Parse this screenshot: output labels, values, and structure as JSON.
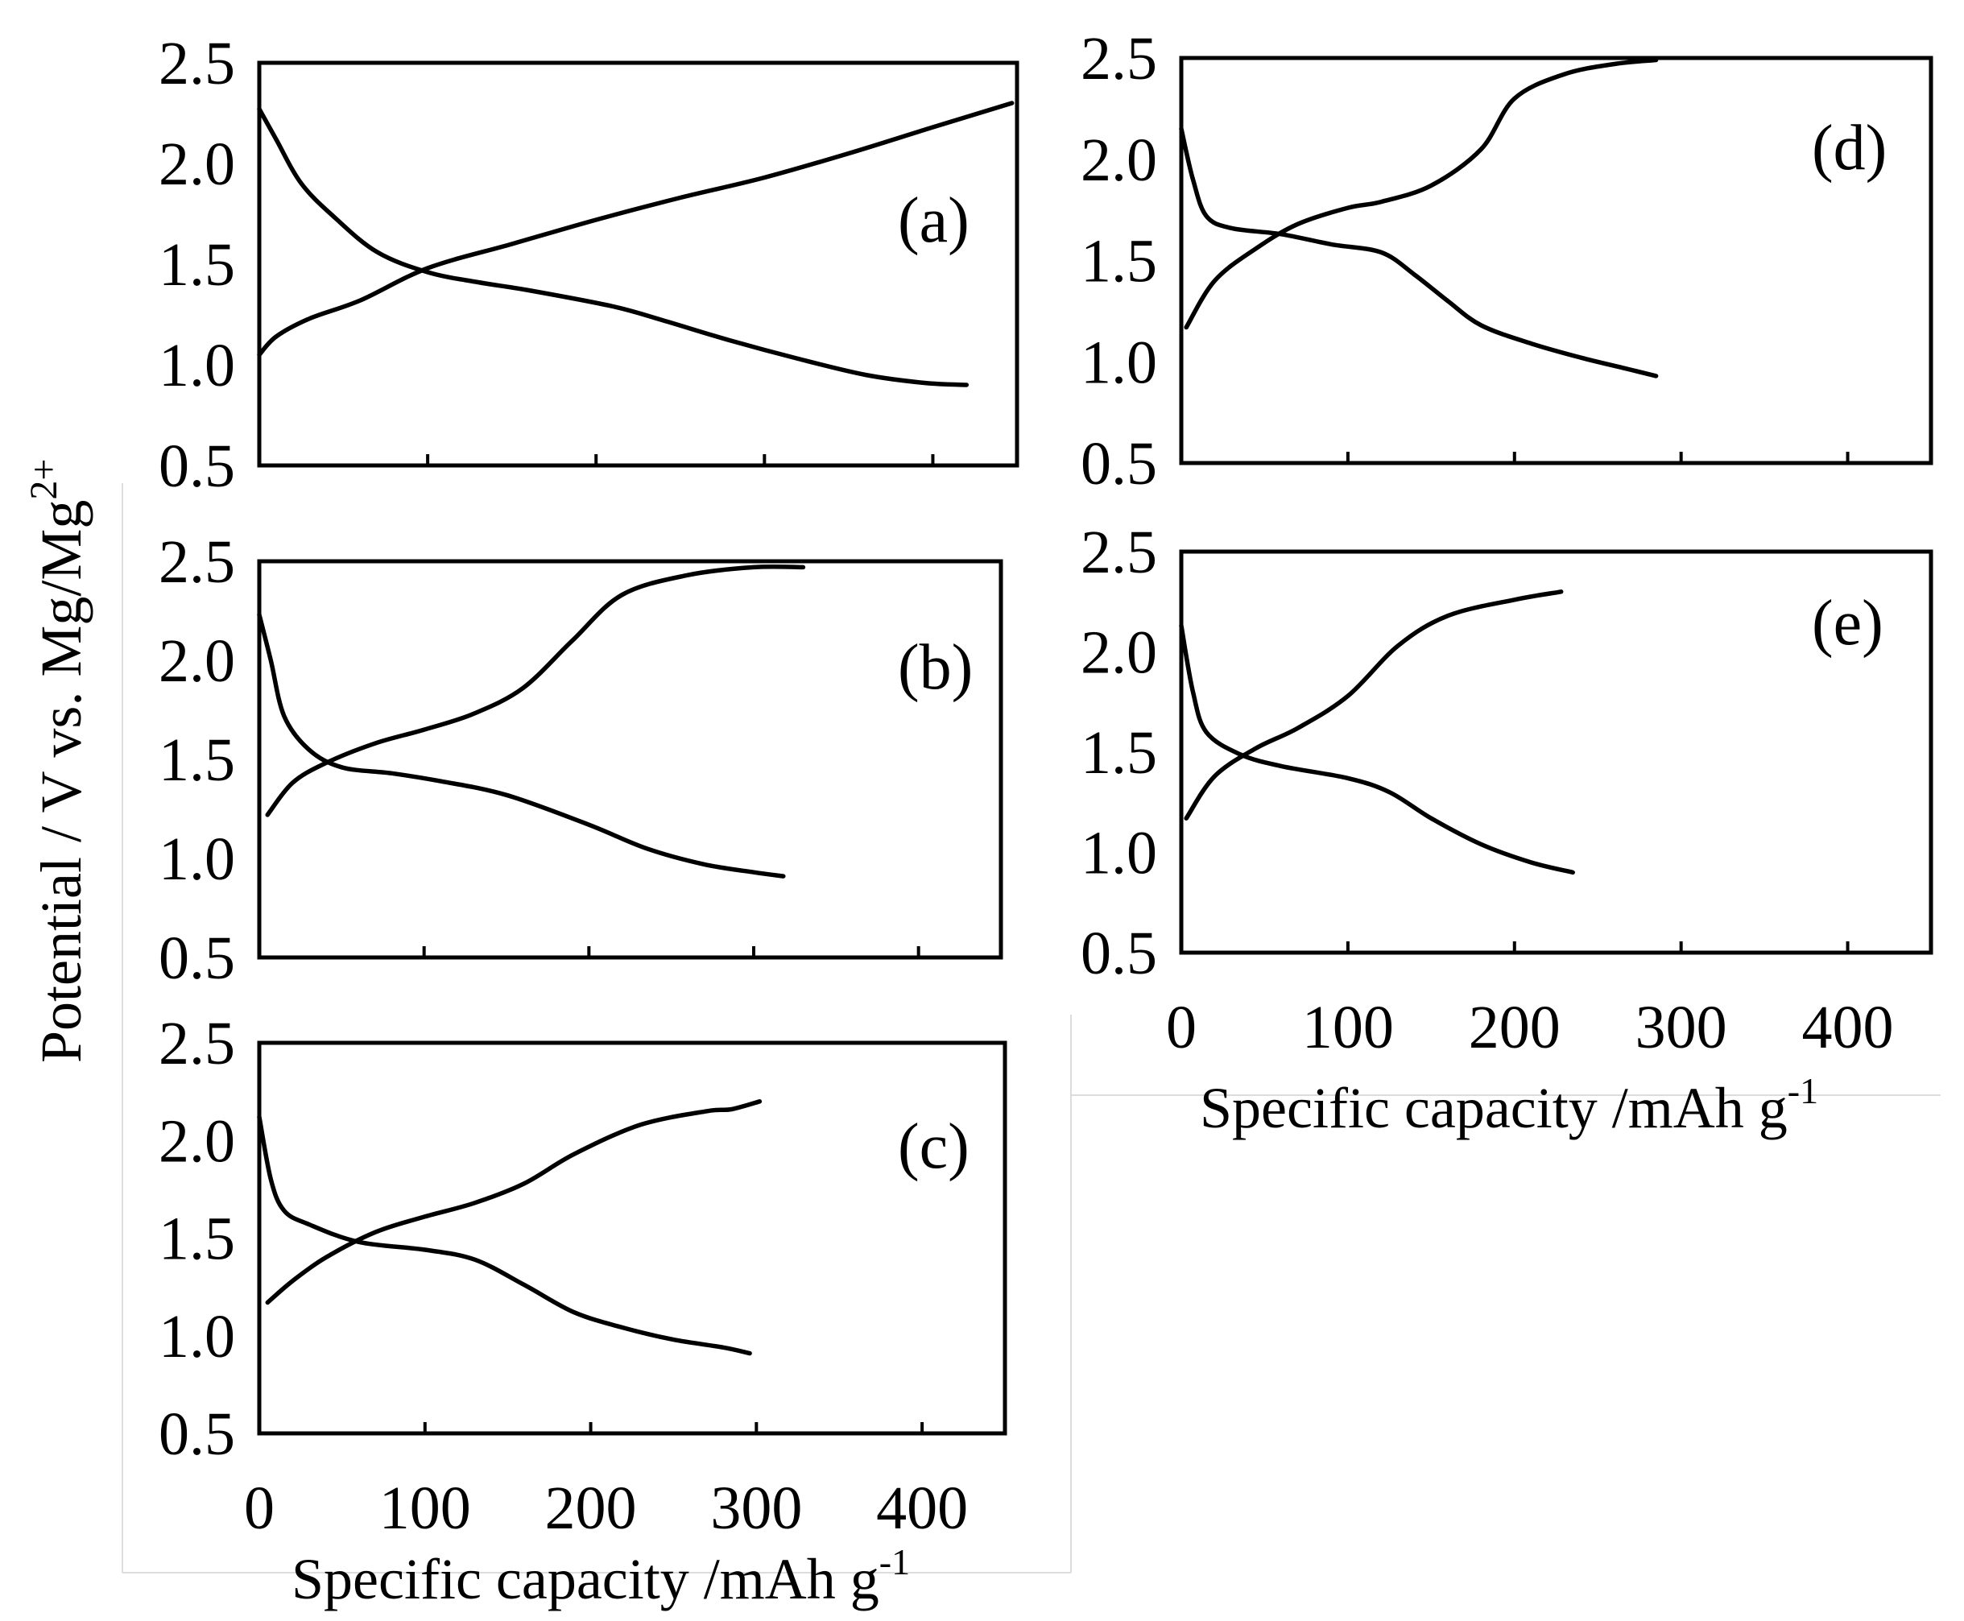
{
  "figure": {
    "y_axis_label": "Potential / V vs. Mg/Mg",
    "y_axis_label_sup": "2+",
    "x_axis_label": "Specific capacity /mAh g",
    "x_axis_label_sup": "-1"
  },
  "chart_data": [
    {
      "type": "line",
      "panel": "(a)",
      "xlim": [
        0,
        450
      ],
      "ylim": [
        0.5,
        2.5
      ],
      "x_ticks": [],
      "y_ticks": [
        "0.5",
        "1.0",
        "1.5",
        "2.0",
        "2.5"
      ],
      "series": [
        {
          "values": [
            [
              0,
              2.27
            ],
            [
              10,
              2.12
            ],
            [
              25,
              1.9
            ],
            [
              45,
              1.73
            ],
            [
              70,
              1.56
            ],
            [
              100,
              1.46
            ],
            [
              130,
              1.41
            ],
            [
              160,
              1.37
            ],
            [
              210,
              1.29
            ],
            [
              240,
              1.22
            ],
            [
              280,
              1.12
            ],
            [
              320,
              1.03
            ],
            [
              360,
              0.95
            ],
            [
              395,
              0.91
            ],
            [
              420,
              0.9
            ]
          ]
        },
        {
          "values": [
            [
              0,
              1.05
            ],
            [
              10,
              1.14
            ],
            [
              30,
              1.23
            ],
            [
              60,
              1.32
            ],
            [
              100,
              1.48
            ],
            [
              150,
              1.6
            ],
            [
              200,
              1.72
            ],
            [
              250,
              1.83
            ],
            [
              300,
              1.93
            ],
            [
              350,
              2.05
            ],
            [
              400,
              2.18
            ],
            [
              447,
              2.3
            ]
          ]
        }
      ]
    },
    {
      "type": "line",
      "panel": "(b)",
      "xlim": [
        0,
        450
      ],
      "ylim": [
        0.5,
        2.5
      ],
      "x_ticks": [],
      "y_ticks": [
        "0.5",
        "1.0",
        "1.5",
        "2.0",
        "2.5"
      ],
      "series": [
        {
          "values": [
            [
              0,
              2.23
            ],
            [
              7,
              2.0
            ],
            [
              15,
              1.72
            ],
            [
              30,
              1.55
            ],
            [
              50,
              1.46
            ],
            [
              80,
              1.43
            ],
            [
              110,
              1.39
            ],
            [
              150,
              1.32
            ],
            [
              200,
              1.17
            ],
            [
              235,
              1.05
            ],
            [
              270,
              0.97
            ],
            [
              300,
              0.93
            ],
            [
              318,
              0.91
            ]
          ]
        },
        {
          "values": [
            [
              5,
              1.22
            ],
            [
              20,
              1.38
            ],
            [
              40,
              1.48
            ],
            [
              70,
              1.58
            ],
            [
              100,
              1.65
            ],
            [
              130,
              1.73
            ],
            [
              160,
              1.86
            ],
            [
              190,
              2.1
            ],
            [
              220,
              2.33
            ],
            [
              260,
              2.43
            ],
            [
              300,
              2.47
            ],
            [
              330,
              2.47
            ]
          ]
        }
      ]
    },
    {
      "type": "line",
      "panel": "(c)",
      "xlim": [
        0,
        450
      ],
      "ylim": [
        0.5,
        2.5
      ],
      "x_ticks": [
        "0",
        "100",
        "200",
        "300",
        "400"
      ],
      "y_ticks": [
        "0.5",
        "1.0",
        "1.5",
        "2.0",
        "2.5"
      ],
      "series": [
        {
          "values": [
            [
              0,
              2.12
            ],
            [
              7,
              1.8
            ],
            [
              15,
              1.64
            ],
            [
              30,
              1.57
            ],
            [
              60,
              1.48
            ],
            [
              100,
              1.44
            ],
            [
              130,
              1.39
            ],
            [
              160,
              1.26
            ],
            [
              190,
              1.12
            ],
            [
              220,
              1.04
            ],
            [
              250,
              0.98
            ],
            [
              280,
              0.94
            ],
            [
              296,
              0.91
            ]
          ]
        },
        {
          "values": [
            [
              5,
              1.17
            ],
            [
              20,
              1.28
            ],
            [
              40,
              1.4
            ],
            [
              70,
              1.53
            ],
            [
              100,
              1.61
            ],
            [
              130,
              1.68
            ],
            [
              160,
              1.78
            ],
            [
              190,
              1.93
            ],
            [
              230,
              2.08
            ],
            [
              270,
              2.15
            ],
            [
              285,
              2.16
            ],
            [
              302,
              2.2
            ]
          ]
        }
      ]
    },
    {
      "type": "line",
      "panel": "(d)",
      "xlim": [
        0,
        450
      ],
      "ylim": [
        0.5,
        2.5
      ],
      "x_ticks": [],
      "y_ticks": [
        "0.5",
        "1.0",
        "1.5",
        "2.0",
        "2.5"
      ],
      "series": [
        {
          "values": [
            [
              0,
              2.15
            ],
            [
              7,
              1.9
            ],
            [
              15,
              1.72
            ],
            [
              30,
              1.66
            ],
            [
              60,
              1.63
            ],
            [
              90,
              1.58
            ],
            [
              120,
              1.54
            ],
            [
              140,
              1.43
            ],
            [
              160,
              1.3
            ],
            [
              180,
              1.18
            ],
            [
              210,
              1.09
            ],
            [
              240,
              1.02
            ],
            [
              265,
              0.97
            ],
            [
              285,
              0.93
            ]
          ]
        },
        {
          "values": [
            [
              3,
              1.17
            ],
            [
              20,
              1.4
            ],
            [
              45,
              1.56
            ],
            [
              70,
              1.68
            ],
            [
              100,
              1.76
            ],
            [
              120,
              1.79
            ],
            [
              150,
              1.87
            ],
            [
              180,
              2.05
            ],
            [
              200,
              2.3
            ],
            [
              230,
              2.42
            ],
            [
              260,
              2.47
            ],
            [
              285,
              2.49
            ]
          ]
        }
      ]
    },
    {
      "type": "line",
      "panel": "(e)",
      "xlim": [
        0,
        450
      ],
      "ylim": [
        0.5,
        2.5
      ],
      "x_ticks": [
        "0",
        "100",
        "200",
        "300",
        "400"
      ],
      "y_ticks": [
        "0.5",
        "1.0",
        "1.5",
        "2.0",
        "2.5"
      ],
      "series": [
        {
          "values": [
            [
              0,
              2.13
            ],
            [
              7,
              1.8
            ],
            [
              15,
              1.6
            ],
            [
              35,
              1.49
            ],
            [
              60,
              1.43
            ],
            [
              100,
              1.37
            ],
            [
              125,
              1.3
            ],
            [
              150,
              1.17
            ],
            [
              180,
              1.04
            ],
            [
              210,
              0.95
            ],
            [
              235,
              0.9
            ]
          ]
        },
        {
          "values": [
            [
              3,
              1.17
            ],
            [
              20,
              1.38
            ],
            [
              45,
              1.52
            ],
            [
              70,
              1.62
            ],
            [
              100,
              1.78
            ],
            [
              130,
              2.03
            ],
            [
              160,
              2.18
            ],
            [
              200,
              2.26
            ],
            [
              228,
              2.3
            ]
          ]
        }
      ]
    }
  ]
}
